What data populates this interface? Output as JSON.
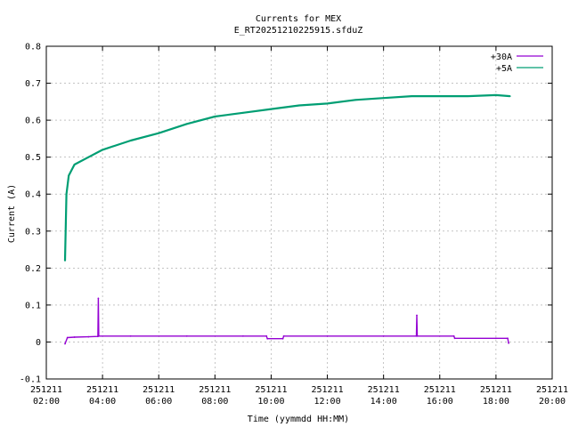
{
  "chart_data": {
    "type": "line",
    "title": "Currents for MEX",
    "subtitle": "E_RT20251210225915.sfduZ",
    "xlabel": "Time (yymmdd HH:MM)",
    "ylabel": "Current (A)",
    "xlim": [
      "2025-12-11 02:00",
      "2025-12-11 20:00"
    ],
    "ylim": [
      -0.1,
      0.8
    ],
    "grid": true,
    "legend_position": "top-right",
    "x_ticks": [
      {
        "date": "251211",
        "time": "02:00"
      },
      {
        "date": "251211",
        "time": "04:00"
      },
      {
        "date": "251211",
        "time": "06:00"
      },
      {
        "date": "251211",
        "time": "08:00"
      },
      {
        "date": "251211",
        "time": "10:00"
      },
      {
        "date": "251211",
        "time": "12:00"
      },
      {
        "date": "251211",
        "time": "14:00"
      },
      {
        "date": "251211",
        "time": "16:00"
      },
      {
        "date": "251211",
        "time": "18:00"
      },
      {
        "date": "251211",
        "time": "20:00"
      }
    ],
    "y_ticks": [
      "-0.1",
      "0",
      "0.1",
      "0.2",
      "0.3",
      "0.4",
      "0.5",
      "0.6",
      "0.7",
      "0.8"
    ],
    "series": [
      {
        "name": "+30A",
        "color": "#9400d3",
        "points": [
          [
            "2025-12-11 02:40",
            -0.005
          ],
          [
            "2025-12-11 02:45",
            0.012
          ],
          [
            "2025-12-11 03:00",
            0.013
          ],
          [
            "2025-12-11 03:30",
            0.014
          ],
          [
            "2025-12-11 03:50",
            0.015
          ],
          [
            "2025-12-11 03:51",
            0.118
          ],
          [
            "2025-12-11 03:52",
            0.016
          ],
          [
            "2025-12-11 05:00",
            0.016
          ],
          [
            "2025-12-11 07:00",
            0.016
          ],
          [
            "2025-12-11 09:00",
            0.016
          ],
          [
            "2025-12-11 09:50",
            0.016
          ],
          [
            "2025-12-11 09:52",
            0.009
          ],
          [
            "2025-12-11 10:25",
            0.009
          ],
          [
            "2025-12-11 10:27",
            0.016
          ],
          [
            "2025-12-11 12:00",
            0.016
          ],
          [
            "2025-12-11 14:00",
            0.016
          ],
          [
            "2025-12-11 15:10",
            0.016
          ],
          [
            "2025-12-11 15:11",
            0.072
          ],
          [
            "2025-12-11 15:12",
            0.016
          ],
          [
            "2025-12-11 16:30",
            0.016
          ],
          [
            "2025-12-11 16:32",
            0.01
          ],
          [
            "2025-12-11 18:00",
            0.01
          ],
          [
            "2025-12-11 18:25",
            0.01
          ],
          [
            "2025-12-11 18:27",
            -0.003
          ]
        ]
      },
      {
        "name": "+5A",
        "color": "#009e73",
        "points": [
          [
            "2025-12-11 02:40",
            0.22
          ],
          [
            "2025-12-11 02:43",
            0.4
          ],
          [
            "2025-12-11 02:48",
            0.45
          ],
          [
            "2025-12-11 03:00",
            0.48
          ],
          [
            "2025-12-11 03:30",
            0.5
          ],
          [
            "2025-12-11 04:00",
            0.52
          ],
          [
            "2025-12-11 05:00",
            0.545
          ],
          [
            "2025-12-11 06:00",
            0.565
          ],
          [
            "2025-12-11 07:00",
            0.59
          ],
          [
            "2025-12-11 08:00",
            0.61
          ],
          [
            "2025-12-11 09:00",
            0.62
          ],
          [
            "2025-12-11 10:00",
            0.63
          ],
          [
            "2025-12-11 11:00",
            0.64
          ],
          [
            "2025-12-11 12:00",
            0.645
          ],
          [
            "2025-12-11 13:00",
            0.655
          ],
          [
            "2025-12-11 14:00",
            0.66
          ],
          [
            "2025-12-11 15:00",
            0.665
          ],
          [
            "2025-12-11 16:00",
            0.665
          ],
          [
            "2025-12-11 17:00",
            0.665
          ],
          [
            "2025-12-11 18:00",
            0.668
          ],
          [
            "2025-12-11 18:30",
            0.665
          ]
        ]
      }
    ]
  }
}
